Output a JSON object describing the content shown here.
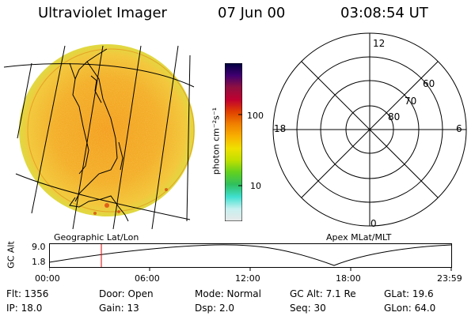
{
  "header": {
    "title": "Ultraviolet Imager",
    "date": "07 Jun 00",
    "time": "03:08:54  UT"
  },
  "colorbar": {
    "unit_label": "photon cm⁻²s⁻¹",
    "tick_100": "100",
    "tick_10": "10",
    "colors": [
      "#e8e8e8",
      "#c8f0f0",
      "#40e0d0",
      "#30c060",
      "#60d020",
      "#c0e000",
      "#f0e000",
      "#f8b000",
      "#f08000",
      "#e04000",
      "#c00030",
      "#901040",
      "#400070",
      "#000040"
    ]
  },
  "image_panel": {
    "projection_label": "Geographic Lat/Lon"
  },
  "polar_panel": {
    "projection_label": "Apex  MLat/MLT",
    "mlt_12": "12",
    "mlt_18": "18",
    "mlt_6": "6",
    "mlt_0": "0",
    "lat_60": "60",
    "lat_70": "70",
    "lat_80": "80"
  },
  "altitude_plot": {
    "ylabel": "GC Alt",
    "y_top": "9.0",
    "y_bottom": "1.8",
    "x_ticks": [
      "00:00",
      "06:00",
      "12:00",
      "18:00",
      "23:59"
    ],
    "current_time_marker": "03:08:54"
  },
  "info": {
    "flt": "Flt: 1356",
    "ip": "IP: 18.0",
    "door": "Door: Open",
    "gain": "Gain: 13",
    "mode": "Mode: Normal",
    "dsp": "Dsp:     2.0",
    "gcalt": "GC Alt: 7.1 Re",
    "seq": "Seq: 30",
    "glat": "GLat:  19.6",
    "glon": "GLon:  64.0"
  }
}
